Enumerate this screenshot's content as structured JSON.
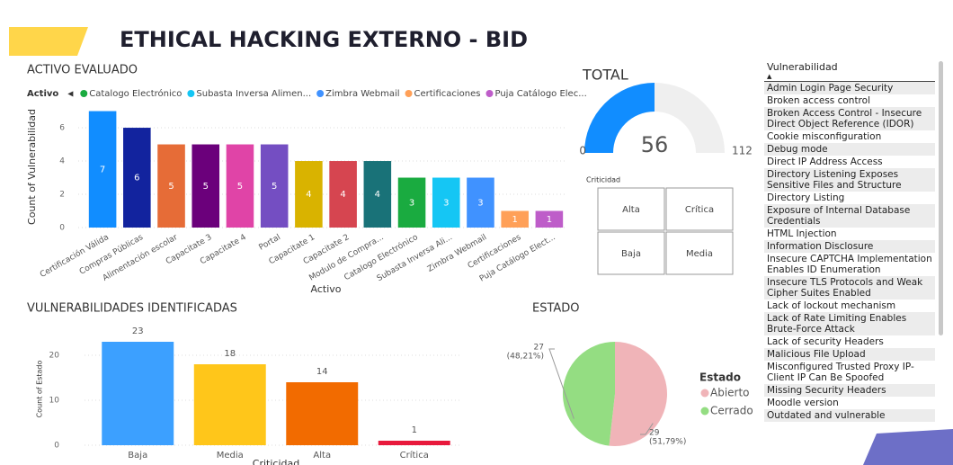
{
  "header": {
    "title": "ETHICAL HACKING EXTERNO  - BID"
  },
  "chart_data": [
    {
      "type": "bar",
      "title": "ACTIVO EVALUADO",
      "x_label": "Activo",
      "y_label": "Count of Vulnerabilidad",
      "legend": {
        "title": "Activo",
        "items": [
          {
            "label": "Catalogo Electrónico",
            "color": "#1aab40"
          },
          {
            "label": "Subasta Inversa Alimen...",
            "color": "#15c6f4"
          },
          {
            "label": "Zimbra Webmail",
            "color": "#4092ff"
          },
          {
            "label": "Certificaciones",
            "color": "#ffa058"
          },
          {
            "label": "Puja Catálogo Elec...",
            "color": "#be5dc9"
          }
        ]
      },
      "categories": [
        "Certificación Válida",
        "Compras Públicas",
        "Alimentación escolar",
        "Capacitate 3",
        "Capacitate 4",
        "Portal",
        "Capacitate 1",
        "Capacitate 2",
        "Modulo de Compra...",
        "Catalogo Electrónico",
        "Subasta Inversa Ali...",
        "Zimbra Webmail",
        "Certificaciones",
        "Puja Catálogo Elect..."
      ],
      "values": [
        7,
        6,
        5,
        5,
        5,
        5,
        4,
        4,
        4,
        3,
        3,
        3,
        1,
        1
      ],
      "colors": [
        "#118dff",
        "#12239e",
        "#e66c37",
        "#6b007b",
        "#e044a7",
        "#744ec2",
        "#d9b300",
        "#d64550",
        "#197278",
        "#1aab40",
        "#15c6f4",
        "#4092ff",
        "#ffa058",
        "#be5dc9"
      ],
      "ylim": [
        0,
        7.3
      ],
      "yticks": [
        0,
        2,
        4,
        6
      ],
      "grid": true
    },
    {
      "type": "gauge",
      "title": "TOTAL",
      "value": 56,
      "min": 0,
      "max": 112,
      "color": "#118dff"
    },
    {
      "type": "bar",
      "title": "VULNERABILIDADES IDENTIFICADAS",
      "x_label": "Criticidad",
      "y_label": "Count of Estado",
      "categories": [
        "Baja",
        "Media",
        "Alta",
        "Crítica"
      ],
      "values": [
        23,
        18,
        14,
        1
      ],
      "colors": [
        "#3ca0ff",
        "#ffc61a",
        "#f26b00",
        "#e8193c"
      ],
      "ylim": [
        0,
        25
      ],
      "yticks": [
        0,
        10,
        20
      ],
      "grid": true
    },
    {
      "type": "pie",
      "title": "ESTADO",
      "legend_title": "Estado",
      "categories": [
        "Abierto",
        "Cerrado"
      ],
      "values": [
        29,
        27
      ],
      "percent_labels": [
        "(51,79%)",
        "(48,21%)"
      ],
      "colors": [
        "#f0b4b8",
        "#94dd82"
      ]
    }
  ],
  "slicer": {
    "title": "Criticidad",
    "options": [
      "Alta",
      "Crítica",
      "Baja",
      "Media"
    ]
  },
  "list": {
    "title": "Vulnerabilidad",
    "items": [
      "Admin Login Page Security",
      "Broken access control",
      "Broken Access Control - Insecure Direct Object Reference (IDOR)",
      "Cookie misconfiguration",
      "Debug mode",
      "Direct IP Address Access",
      "Directory Listening Exposes Sensitive Files and Structure",
      "Directory Listing",
      "Exposure of Internal Database Credentials",
      "HTML Injection",
      "Information Disclosure",
      "Insecure CAPTCHA Implementation Enables ID Enumeration",
      "Insecure TLS Protocols and Weak Cipher Suites Enabled",
      "Lack of lockout mechanism",
      "Lack of Rate Limiting Enables Brute-Force Attack",
      "Lack of security Headers",
      "Malicious File Upload",
      "Misconfigured Trusted Proxy IP-Client IP Can Be Spoofed",
      "Missing Security Headers",
      "Moodle version",
      "Outdated and vulnerable"
    ]
  }
}
